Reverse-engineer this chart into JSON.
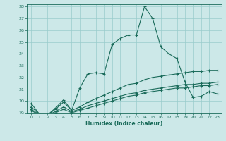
{
  "xlabel": "Humidex (Indice chaleur)",
  "background_color": "#cce8e8",
  "grid_color": "#99cccc",
  "line_color": "#1a6b5a",
  "xlim": [
    -0.5,
    23.5
  ],
  "ylim": [
    19,
    28.2
  ],
  "xticks": [
    0,
    1,
    2,
    3,
    4,
    5,
    6,
    7,
    8,
    9,
    10,
    11,
    12,
    13,
    14,
    15,
    16,
    17,
    18,
    19,
    20,
    21,
    22,
    23
  ],
  "yticks": [
    19,
    20,
    21,
    22,
    23,
    24,
    25,
    26,
    27,
    28
  ],
  "series": [
    [
      19.8,
      18.9,
      18.8,
      19.4,
      20.1,
      19.2,
      21.1,
      22.3,
      22.4,
      22.3,
      24.8,
      25.3,
      25.6,
      25.6,
      28.0,
      27.0,
      24.6,
      24.0,
      23.6,
      21.6,
      20.3,
      20.4,
      20.8,
      20.6
    ],
    [
      19.5,
      18.9,
      18.8,
      19.3,
      19.9,
      19.2,
      19.5,
      19.9,
      20.2,
      20.5,
      20.8,
      21.1,
      21.4,
      21.5,
      21.8,
      22.0,
      22.1,
      22.2,
      22.3,
      22.4,
      22.5,
      22.5,
      22.6,
      22.6
    ],
    [
      19.3,
      18.85,
      18.8,
      19.1,
      19.5,
      19.1,
      19.3,
      19.6,
      19.8,
      20.0,
      20.2,
      20.4,
      20.6,
      20.7,
      20.9,
      21.0,
      21.1,
      21.2,
      21.3,
      21.4,
      21.4,
      21.5,
      21.5,
      21.6
    ],
    [
      19.2,
      18.8,
      18.75,
      19.0,
      19.3,
      19.0,
      19.2,
      19.4,
      19.6,
      19.8,
      20.0,
      20.2,
      20.4,
      20.5,
      20.7,
      20.8,
      20.9,
      21.0,
      21.1,
      21.1,
      21.2,
      21.3,
      21.3,
      21.4
    ]
  ]
}
